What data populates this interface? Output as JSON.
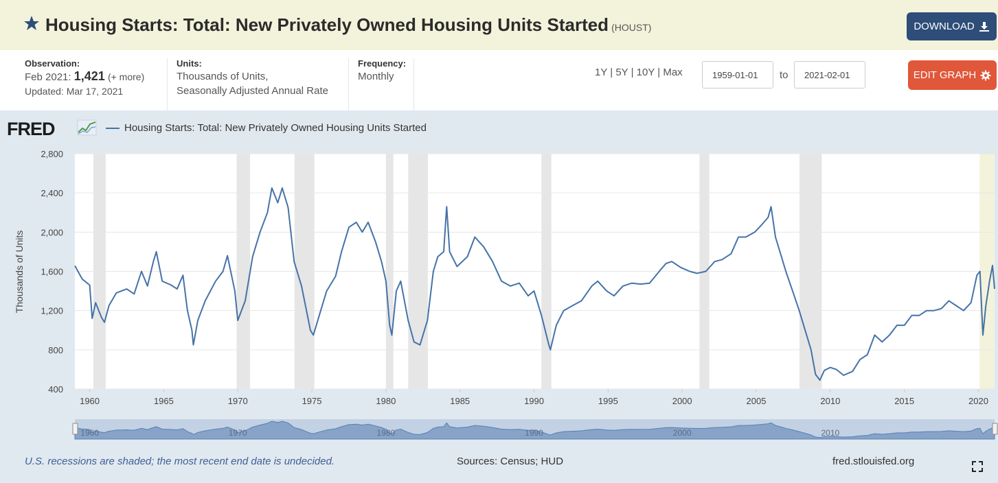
{
  "header": {
    "title": "Housing Starts: Total: New Privately Owned Housing Units Started",
    "series_code": "(HOUST)",
    "download_label": "DOWNLOAD",
    "star_icon": "star-icon",
    "download_icon": "download-icon"
  },
  "meta": {
    "observation_label": "Observation:",
    "observation_date": "Feb 2021:",
    "observation_value": "1,421",
    "observation_more": "(+ more)",
    "updated": "Updated: Mar 17, 2021",
    "units_label": "Units:",
    "units_line1": "Thousands of Units,",
    "units_line2": "Seasonally Adjusted Annual Rate",
    "frequency_label": "Frequency:",
    "frequency_value": "Monthly"
  },
  "controls": {
    "range_1y": "1Y",
    "range_5y": "5Y",
    "range_10y": "10Y",
    "range_max": "Max",
    "sep": "|",
    "start_date": "1959-01-01",
    "to_label": "to",
    "end_date": "2021-02-01",
    "edit_label": "EDIT GRAPH",
    "edit_icon": "gear-icon"
  },
  "graph": {
    "logo_text": "FRED",
    "legend_label": "Housing Starts: Total: New Privately Owned Housing Units Started",
    "footer_note": "U.S. recessions are shaded; the most recent end date is undecided.",
    "sources": "Sources: Census; HUD",
    "site": "fred.stlouisfed.org"
  },
  "colors": {
    "line": "#4572a7",
    "recession": "#e6e6e6",
    "undecided_recession": "#f3f3dc",
    "title_bar": "#f3f3dc",
    "download_button": "#2e4d78",
    "edit_button": "#e0573a",
    "graph_background": "#e1e9f0"
  },
  "chart_data": {
    "type": "line",
    "ylabel": "Thousands of Units",
    "ylim": [
      400,
      2800
    ],
    "yticks": [
      400,
      800,
      1200,
      1600,
      2000,
      2400,
      2800
    ],
    "xlim": [
      1959.0,
      2021.09
    ],
    "xticks": [
      1960,
      1965,
      1970,
      1975,
      1980,
      1985,
      1990,
      1995,
      2000,
      2005,
      2010,
      2015,
      2020
    ],
    "navigator_labels": [
      1960,
      1970,
      1980,
      1990,
      2000,
      2010
    ],
    "grid": true,
    "recessions": [
      [
        1960.25,
        1961.08
      ],
      [
        1969.92,
        1970.83
      ],
      [
        1973.83,
        1975.17
      ],
      [
        1980.0,
        1980.5
      ],
      [
        1981.5,
        1982.83
      ],
      [
        1990.5,
        1991.17
      ],
      [
        2001.17,
        2001.83
      ],
      [
        2007.92,
        2009.42
      ],
      [
        2020.08,
        2021.09
      ]
    ],
    "series": [
      {
        "name": "Housing Starts: Total: New Privately Owned Housing Units Started",
        "points": [
          [
            1959.0,
            1657
          ],
          [
            1959.5,
            1520
          ],
          [
            1960.0,
            1460
          ],
          [
            1960.17,
            1120
          ],
          [
            1960.4,
            1280
          ],
          [
            1960.8,
            1130
          ],
          [
            1961.0,
            1080
          ],
          [
            1961.3,
            1250
          ],
          [
            1961.8,
            1380
          ],
          [
            1962.5,
            1420
          ],
          [
            1963.0,
            1370
          ],
          [
            1963.5,
            1600
          ],
          [
            1963.9,
            1450
          ],
          [
            1964.3,
            1700
          ],
          [
            1964.5,
            1800
          ],
          [
            1964.9,
            1500
          ],
          [
            1965.5,
            1460
          ],
          [
            1965.9,
            1420
          ],
          [
            1966.3,
            1560
          ],
          [
            1966.6,
            1200
          ],
          [
            1966.9,
            1000
          ],
          [
            1967.0,
            850
          ],
          [
            1967.3,
            1100
          ],
          [
            1967.8,
            1300
          ],
          [
            1968.5,
            1500
          ],
          [
            1969.0,
            1600
          ],
          [
            1969.3,
            1760
          ],
          [
            1969.8,
            1400
          ],
          [
            1970.0,
            1100
          ],
          [
            1970.5,
            1300
          ],
          [
            1971.0,
            1750
          ],
          [
            1971.5,
            2000
          ],
          [
            1972.0,
            2200
          ],
          [
            1972.3,
            2450
          ],
          [
            1972.7,
            2300
          ],
          [
            1973.0,
            2450
          ],
          [
            1973.4,
            2250
          ],
          [
            1973.8,
            1700
          ],
          [
            1974.3,
            1450
          ],
          [
            1974.9,
            1000
          ],
          [
            1975.1,
            950
          ],
          [
            1975.5,
            1150
          ],
          [
            1976.0,
            1400
          ],
          [
            1976.6,
            1550
          ],
          [
            1977.0,
            1800
          ],
          [
            1977.5,
            2050
          ],
          [
            1978.0,
            2100
          ],
          [
            1978.4,
            2000
          ],
          [
            1978.8,
            2100
          ],
          [
            1979.3,
            1900
          ],
          [
            1979.7,
            1700
          ],
          [
            1980.0,
            1500
          ],
          [
            1980.25,
            1050
          ],
          [
            1980.4,
            950
          ],
          [
            1980.7,
            1400
          ],
          [
            1981.0,
            1500
          ],
          [
            1981.5,
            1100
          ],
          [
            1981.9,
            880
          ],
          [
            1982.3,
            850
          ],
          [
            1982.8,
            1100
          ],
          [
            1983.2,
            1600
          ],
          [
            1983.5,
            1750
          ],
          [
            1983.9,
            1800
          ],
          [
            1984.1,
            2260
          ],
          [
            1984.3,
            1800
          ],
          [
            1984.8,
            1650
          ],
          [
            1985.5,
            1750
          ],
          [
            1986.0,
            1950
          ],
          [
            1986.6,
            1850
          ],
          [
            1987.2,
            1700
          ],
          [
            1987.8,
            1500
          ],
          [
            1988.4,
            1450
          ],
          [
            1989.0,
            1480
          ],
          [
            1989.6,
            1350
          ],
          [
            1990.0,
            1400
          ],
          [
            1990.5,
            1150
          ],
          [
            1991.0,
            850
          ],
          [
            1991.1,
            800
          ],
          [
            1991.5,
            1050
          ],
          [
            1992.0,
            1200
          ],
          [
            1992.6,
            1250
          ],
          [
            1993.2,
            1300
          ],
          [
            1993.9,
            1450
          ],
          [
            1994.3,
            1500
          ],
          [
            1994.9,
            1400
          ],
          [
            1995.4,
            1350
          ],
          [
            1996.0,
            1450
          ],
          [
            1996.6,
            1480
          ],
          [
            1997.2,
            1470
          ],
          [
            1997.8,
            1480
          ],
          [
            1998.4,
            1590
          ],
          [
            1998.9,
            1680
          ],
          [
            1999.3,
            1700
          ],
          [
            1999.9,
            1640
          ],
          [
            2000.5,
            1600
          ],
          [
            2001.0,
            1580
          ],
          [
            2001.6,
            1600
          ],
          [
            2002.2,
            1700
          ],
          [
            2002.7,
            1720
          ],
          [
            2003.3,
            1780
          ],
          [
            2003.8,
            1950
          ],
          [
            2004.3,
            1950
          ],
          [
            2004.9,
            2000
          ],
          [
            2005.4,
            2080
          ],
          [
            2005.8,
            2150
          ],
          [
            2006.0,
            2260
          ],
          [
            2006.3,
            1950
          ],
          [
            2006.7,
            1750
          ],
          [
            2007.0,
            1600
          ],
          [
            2007.5,
            1380
          ],
          [
            2007.9,
            1200
          ],
          [
            2008.3,
            1000
          ],
          [
            2008.7,
            800
          ],
          [
            2009.0,
            550
          ],
          [
            2009.3,
            490
          ],
          [
            2009.6,
            590
          ],
          [
            2010.0,
            620
          ],
          [
            2010.4,
            600
          ],
          [
            2010.9,
            540
          ],
          [
            2011.5,
            580
          ],
          [
            2012.0,
            700
          ],
          [
            2012.5,
            750
          ],
          [
            2013.0,
            950
          ],
          [
            2013.5,
            880
          ],
          [
            2014.0,
            950
          ],
          [
            2014.5,
            1050
          ],
          [
            2015.0,
            1050
          ],
          [
            2015.5,
            1150
          ],
          [
            2016.0,
            1150
          ],
          [
            2016.5,
            1200
          ],
          [
            2017.0,
            1200
          ],
          [
            2017.5,
            1220
          ],
          [
            2018.0,
            1300
          ],
          [
            2018.5,
            1250
          ],
          [
            2019.0,
            1200
          ],
          [
            2019.5,
            1280
          ],
          [
            2019.9,
            1560
          ],
          [
            2020.1,
            1600
          ],
          [
            2020.3,
            950
          ],
          [
            2020.5,
            1250
          ],
          [
            2020.75,
            1500
          ],
          [
            2020.95,
            1660
          ],
          [
            2021.09,
            1421
          ]
        ]
      }
    ]
  }
}
